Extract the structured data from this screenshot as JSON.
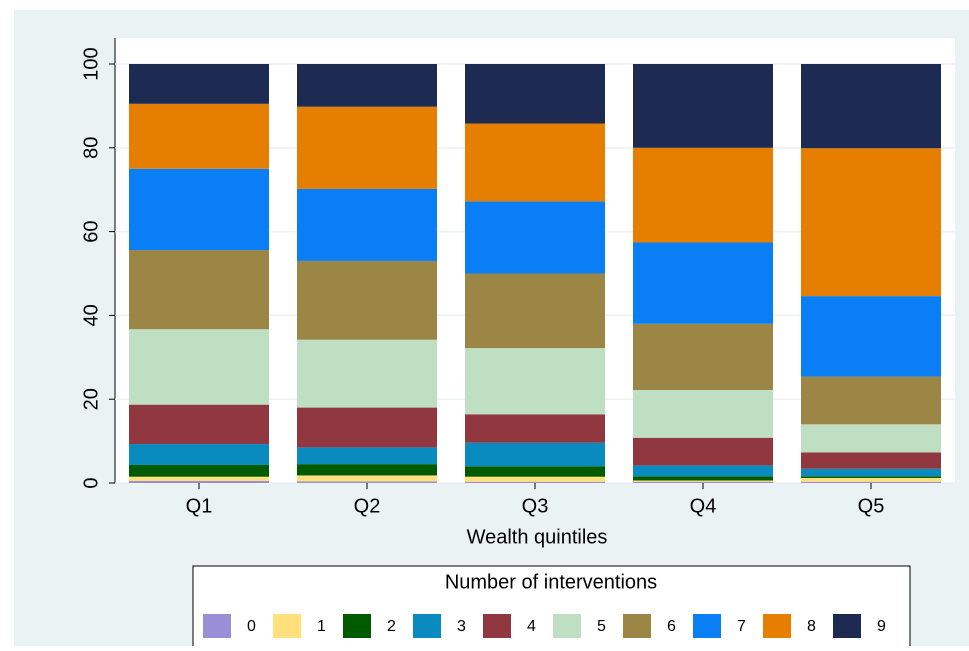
{
  "chart_data": {
    "type": "stacked_bar",
    "categories": [
      "Q1",
      "Q2",
      "Q3",
      "Q4",
      "Q5"
    ],
    "x_label": "Wealth quintiles",
    "legend_title": "Number of interventions",
    "ylim": [
      0,
      100
    ],
    "yticks": [
      0,
      20,
      40,
      60,
      80,
      100
    ],
    "grid": true,
    "series": [
      {
        "name": "0",
        "color": "#9a8fd6",
        "values": [
          0.5,
          0.4,
          0.3,
          0.3,
          0.3
        ]
      },
      {
        "name": "1",
        "color": "#ffe07a",
        "values": [
          1.0,
          1.4,
          1.2,
          0.3,
          0.9
        ]
      },
      {
        "name": "2",
        "color": "#005a00",
        "values": [
          2.8,
          2.7,
          2.5,
          1.0,
          0.4
        ]
      },
      {
        "name": "3",
        "color": "#0a8bc0",
        "values": [
          5.0,
          4.0,
          5.6,
          2.6,
          1.8
        ]
      },
      {
        "name": "4",
        "color": "#91373f",
        "values": [
          9.4,
          9.5,
          6.8,
          6.6,
          3.9
        ]
      },
      {
        "name": "5",
        "color": "#bfdfc3",
        "values": [
          18.0,
          16.2,
          15.8,
          11.4,
          6.7
        ]
      },
      {
        "name": "6",
        "color": "#9b8646",
        "values": [
          18.9,
          18.8,
          17.8,
          15.8,
          11.4
        ]
      },
      {
        "name": "7",
        "color": "#0a7ff5",
        "values": [
          19.4,
          17.2,
          17.2,
          19.4,
          19.2
        ]
      },
      {
        "name": "8",
        "color": "#e67e00",
        "values": [
          15.5,
          19.6,
          18.6,
          22.6,
          35.3
        ]
      },
      {
        "name": "9",
        "color": "#1d2b52",
        "values": [
          9.5,
          10.2,
          14.2,
          20.0,
          20.1
        ]
      }
    ]
  }
}
